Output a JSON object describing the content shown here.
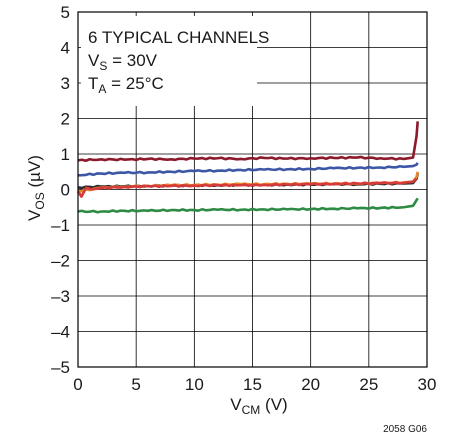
{
  "chart_data": {
    "type": "line",
    "x_axis": {
      "label_main": "V",
      "label_sub": "CM",
      "label_unit": " (V)",
      "range": [
        0,
        30
      ],
      "ticks": [
        0,
        5,
        10,
        15,
        20,
        25,
        30
      ]
    },
    "y_axis": {
      "label_main": "V",
      "label_sub": "OS",
      "label_unit": " (µV)",
      "range": [
        -5,
        5
      ],
      "ticks": [
        -5,
        -4,
        -3,
        -2,
        -1,
        0,
        1,
        2,
        3,
        4,
        5
      ],
      "tick_labels": [
        "–5",
        "–4",
        "–3",
        "–2",
        "–1",
        "0",
        "1",
        "2",
        "3",
        "4",
        "5"
      ]
    },
    "grid": true,
    "annotation": {
      "line1": "6 TYPICAL CHANNELS",
      "line2_main": "V",
      "line2_sub": "S",
      "line2_rest": " = 30V",
      "line3_main": "T",
      "line3_sub": "A",
      "line3_rest": " = 25°C",
      "placement": "top-left"
    },
    "figure_id": "2058 G06",
    "series": [
      {
        "color": "#8b1a2b",
        "x": [
          0,
          2,
          4,
          6,
          8,
          10,
          12,
          14,
          16,
          18,
          20,
          22,
          24,
          26,
          28,
          28.8,
          29.1,
          29.2
        ],
        "y": [
          0.82,
          0.85,
          0.84,
          0.86,
          0.85,
          0.87,
          0.88,
          0.86,
          0.89,
          0.87,
          0.88,
          0.89,
          0.9,
          0.88,
          0.86,
          0.9,
          1.5,
          1.92
        ]
      },
      {
        "color": "#3d57a6",
        "x": [
          0,
          2,
          4,
          6,
          8,
          10,
          12,
          14,
          16,
          18,
          20,
          22,
          24,
          26,
          28,
          28.8,
          29.1,
          29.2
        ],
        "y": [
          0.4,
          0.45,
          0.47,
          0.48,
          0.5,
          0.52,
          0.53,
          0.55,
          0.56,
          0.57,
          0.58,
          0.6,
          0.61,
          0.62,
          0.64,
          0.66,
          0.7,
          0.75
        ]
      },
      {
        "color": "#2a2a2a",
        "x": [
          0,
          2,
          4,
          6,
          8,
          10,
          12,
          14,
          16,
          18,
          20,
          22,
          24,
          26,
          28,
          28.8,
          29.1,
          29.2
        ],
        "y": [
          0.06,
          0.08,
          0.09,
          0.1,
          0.11,
          0.12,
          0.12,
          0.13,
          0.13,
          0.14,
          0.14,
          0.15,
          0.15,
          0.16,
          0.17,
          0.18,
          0.3,
          0.45
        ]
      },
      {
        "color": "#e8872a",
        "x": [
          0,
          2,
          4,
          6,
          8,
          10,
          12,
          14,
          16,
          18,
          20,
          22,
          24,
          26,
          28,
          28.8,
          29.1,
          29.2
        ],
        "y": [
          -0.05,
          0.05,
          0.08,
          0.1,
          0.12,
          0.13,
          0.14,
          0.15,
          0.15,
          0.16,
          0.16,
          0.17,
          0.17,
          0.18,
          0.2,
          0.22,
          0.35,
          0.5
        ]
      },
      {
        "color": "#d63a3a",
        "x": [
          0,
          0.3,
          0.7,
          1.2,
          2,
          4,
          6,
          8,
          10,
          12,
          14,
          16,
          18,
          20,
          22,
          24,
          26,
          28,
          28.8,
          29.1
        ],
        "y": [
          -0.05,
          -0.2,
          0.05,
          0.0,
          0.04,
          0.07,
          0.09,
          0.1,
          0.11,
          0.12,
          0.12,
          0.13,
          0.14,
          0.15,
          0.16,
          0.17,
          0.18,
          0.19,
          0.22,
          0.3
        ]
      },
      {
        "color": "#2e8b45",
        "x": [
          0,
          2,
          4,
          6,
          8,
          10,
          12,
          14,
          16,
          18,
          20,
          22,
          24,
          26,
          28,
          28.8,
          29.1,
          29.2
        ],
        "y": [
          -0.62,
          -0.62,
          -0.6,
          -0.6,
          -0.58,
          -0.58,
          -0.57,
          -0.57,
          -0.56,
          -0.56,
          -0.55,
          -0.54,
          -0.53,
          -0.52,
          -0.5,
          -0.46,
          -0.3,
          -0.25
        ]
      }
    ]
  }
}
